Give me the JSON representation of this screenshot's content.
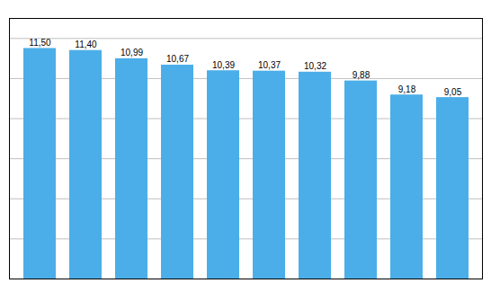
{
  "chart_data": {
    "type": "bar",
    "categories": [
      null,
      null,
      null,
      null,
      null,
      null,
      null,
      null,
      null,
      null
    ],
    "values": [
      11.5,
      11.4,
      10.99,
      10.67,
      10.39,
      10.37,
      10.32,
      9.88,
      9.18,
      9.05
    ],
    "value_labels": [
      "11,50",
      "11,40",
      "10,99",
      "10,67",
      "10,39",
      "10,37",
      "10,32",
      "9,88",
      "9,18",
      "9,05"
    ],
    "color": "#4BAEE8",
    "ylim": [
      0,
      13
    ],
    "yticks": [
      0,
      2,
      4,
      6,
      8,
      10,
      12
    ],
    "grid": true,
    "data_labels": true,
    "tick_labels": false
  }
}
